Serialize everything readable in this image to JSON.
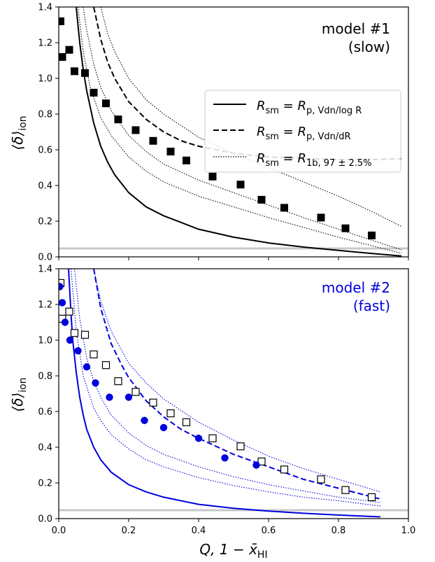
{
  "chart_data": [
    {
      "type": "line",
      "panel": "top",
      "annotation": [
        "model #1",
        "(slow)"
      ],
      "annotation_color": "#000000",
      "ylabel": "⟨δ⟩",
      "ylabel_sub": "ion",
      "xlim": [
        0,
        1.0
      ],
      "ylim": [
        0,
        1.4
      ],
      "yticks": [
        "0.0",
        "0.2",
        "0.4",
        "0.6",
        "0.8",
        "1.0",
        "1.2",
        "1.4"
      ],
      "line_color": "#000000",
      "legend": {
        "placement": "center-right",
        "entries": [
          {
            "style": "solid",
            "lhs": "R",
            "lhs_sub": "sm",
            "rhs": "R",
            "rhs_sub": "p, Vdn/log R"
          },
          {
            "style": "dashed",
            "lhs": "R",
            "lhs_sub": "sm",
            "rhs": "R",
            "rhs_sub": "p, Vdn/dR"
          },
          {
            "style": "dotted",
            "lhs": "R",
            "lhs_sub": "sm",
            "rhs": "R",
            "rhs_sub": "1b, 97 ± 2.5%"
          }
        ]
      },
      "series": [
        {
          "style": "solid",
          "x": [
            0.05,
            0.06,
            0.07,
            0.08,
            0.1,
            0.12,
            0.14,
            0.16,
            0.2,
            0.25,
            0.3,
            0.4,
            0.5,
            0.6,
            0.7,
            0.8,
            0.9,
            0.98
          ],
          "y": [
            1.4,
            1.2,
            1.05,
            0.93,
            0.75,
            0.62,
            0.53,
            0.46,
            0.36,
            0.28,
            0.23,
            0.155,
            0.11,
            0.078,
            0.055,
            0.036,
            0.018,
            0.005
          ]
        },
        {
          "style": "dashed",
          "x": [
            0.1,
            0.12,
            0.14,
            0.16,
            0.2,
            0.25,
            0.3,
            0.35,
            0.4,
            0.5,
            0.6,
            0.7,
            0.8,
            0.9,
            0.98
          ],
          "y": [
            1.4,
            1.22,
            1.09,
            1.0,
            0.87,
            0.77,
            0.7,
            0.65,
            0.62,
            0.58,
            0.56,
            0.55,
            0.545,
            0.545,
            0.55
          ]
        },
        {
          "style": "dotted",
          "x": [
            0.12,
            0.14,
            0.16,
            0.2,
            0.25,
            0.3,
            0.4,
            0.5,
            0.6,
            0.7,
            0.8,
            0.9,
            0.98
          ],
          "y": [
            1.4,
            1.25,
            1.15,
            1.0,
            0.88,
            0.8,
            0.67,
            0.58,
            0.5,
            0.42,
            0.34,
            0.25,
            0.17
          ]
        },
        {
          "style": "dotted",
          "x": [
            0.07,
            0.08,
            0.1,
            0.12,
            0.15,
            0.2,
            0.25,
            0.3,
            0.4,
            0.5,
            0.6,
            0.7,
            0.8,
            0.9,
            0.98
          ],
          "y": [
            1.4,
            1.27,
            1.08,
            0.95,
            0.82,
            0.68,
            0.59,
            0.52,
            0.43,
            0.36,
            0.29,
            0.22,
            0.155,
            0.09,
            0.04
          ]
        },
        {
          "style": "dotted",
          "x": [
            0.055,
            0.07,
            0.09,
            0.12,
            0.15,
            0.2,
            0.25,
            0.3,
            0.4,
            0.5,
            0.6,
            0.7,
            0.8,
            0.9,
            0.98
          ],
          "y": [
            1.4,
            1.15,
            0.95,
            0.78,
            0.68,
            0.56,
            0.48,
            0.42,
            0.34,
            0.28,
            0.22,
            0.165,
            0.11,
            0.06,
            0.02
          ]
        }
      ],
      "markers": {
        "style": "filled-square",
        "color": "#000000",
        "x": [
          0.005,
          0.01,
          0.03,
          0.045,
          0.075,
          0.1,
          0.135,
          0.17,
          0.22,
          0.27,
          0.32,
          0.365,
          0.44,
          0.52,
          0.58,
          0.645,
          0.75,
          0.82,
          0.895
        ],
        "y": [
          1.32,
          1.12,
          1.16,
          1.04,
          1.03,
          0.92,
          0.86,
          0.77,
          0.71,
          0.65,
          0.59,
          0.54,
          0.45,
          0.405,
          0.32,
          0.275,
          0.22,
          0.16,
          0.12
        ]
      }
    },
    {
      "type": "line",
      "panel": "bottom",
      "annotation": [
        "model #2",
        "(fast)"
      ],
      "annotation_color": "#0000dd",
      "xlabel": "Q, 1 − x̄",
      "xlabel_sub": "HI",
      "ylabel": "⟨δ⟩",
      "ylabel_sub": "ion",
      "xlim": [
        0,
        1.0
      ],
      "ylim": [
        0,
        1.4
      ],
      "xticks": [
        "0.0",
        "0.2",
        "0.4",
        "0.6",
        "0.8",
        "1.0"
      ],
      "yticks": [
        "0.0",
        "0.2",
        "0.4",
        "0.6",
        "0.8",
        "1.0",
        "1.2",
        "1.4"
      ],
      "line_color": "#0000dd",
      "series": [
        {
          "style": "solid",
          "x": [
            0.028,
            0.035,
            0.04,
            0.05,
            0.06,
            0.07,
            0.08,
            0.1,
            0.12,
            0.15,
            0.2,
            0.25,
            0.3,
            0.4,
            0.5,
            0.6,
            0.7,
            0.8,
            0.92
          ],
          "y": [
            1.4,
            1.15,
            1.0,
            0.82,
            0.68,
            0.58,
            0.5,
            0.4,
            0.33,
            0.26,
            0.19,
            0.15,
            0.12,
            0.08,
            0.058,
            0.042,
            0.03,
            0.02,
            0.01
          ]
        },
        {
          "style": "dashed",
          "x": [
            0.1,
            0.12,
            0.15,
            0.18,
            0.2,
            0.25,
            0.3,
            0.35,
            0.4,
            0.5,
            0.6,
            0.7,
            0.8,
            0.92
          ],
          "y": [
            1.4,
            1.18,
            0.98,
            0.86,
            0.79,
            0.66,
            0.57,
            0.5,
            0.45,
            0.36,
            0.29,
            0.22,
            0.17,
            0.11
          ]
        },
        {
          "style": "dotted",
          "x": [
            0.1,
            0.12,
            0.15,
            0.2,
            0.25,
            0.3,
            0.4,
            0.5,
            0.6,
            0.7,
            0.8,
            0.92
          ],
          "y": [
            1.4,
            1.22,
            1.05,
            0.87,
            0.76,
            0.67,
            0.54,
            0.44,
            0.35,
            0.28,
            0.22,
            0.15
          ]
        },
        {
          "style": "dotted",
          "x": [
            0.045,
            0.06,
            0.08,
            0.1,
            0.12,
            0.15,
            0.2,
            0.25,
            0.3,
            0.4,
            0.5,
            0.6,
            0.7,
            0.8,
            0.92
          ],
          "y": [
            1.4,
            1.12,
            0.9,
            0.77,
            0.68,
            0.58,
            0.48,
            0.41,
            0.36,
            0.29,
            0.235,
            0.19,
            0.155,
            0.12,
            0.09
          ]
        },
        {
          "style": "dotted",
          "x": [
            0.035,
            0.05,
            0.07,
            0.1,
            0.12,
            0.15,
            0.2,
            0.25,
            0.3,
            0.4,
            0.5,
            0.6,
            0.7,
            0.8,
            0.92
          ],
          "y": [
            1.4,
            1.05,
            0.8,
            0.62,
            0.55,
            0.47,
            0.39,
            0.33,
            0.29,
            0.23,
            0.185,
            0.15,
            0.12,
            0.1,
            0.07
          ]
        }
      ],
      "markers": {
        "style": "filled-circle",
        "color": "#0000dd",
        "x": [
          0.003,
          0.01,
          0.018,
          0.032,
          0.055,
          0.08,
          0.105,
          0.145,
          0.2,
          0.245,
          0.3,
          0.4,
          0.475,
          0.565
        ],
        "y": [
          1.3,
          1.21,
          1.1,
          1.0,
          0.94,
          0.85,
          0.76,
          0.68,
          0.68,
          0.55,
          0.51,
          0.45,
          0.34,
          0.3
        ]
      },
      "markers_open": {
        "style": "open-square",
        "color": "#000000",
        "x": [
          0.005,
          0.01,
          0.03,
          0.045,
          0.075,
          0.1,
          0.135,
          0.17,
          0.22,
          0.27,
          0.32,
          0.365,
          0.44,
          0.52,
          0.58,
          0.645,
          0.75,
          0.82,
          0.895
        ],
        "y": [
          1.32,
          1.12,
          1.16,
          1.04,
          1.03,
          0.92,
          0.86,
          0.77,
          0.71,
          0.65,
          0.59,
          0.54,
          0.45,
          0.405,
          0.32,
          0.275,
          0.22,
          0.16,
          0.12
        ]
      }
    }
  ]
}
